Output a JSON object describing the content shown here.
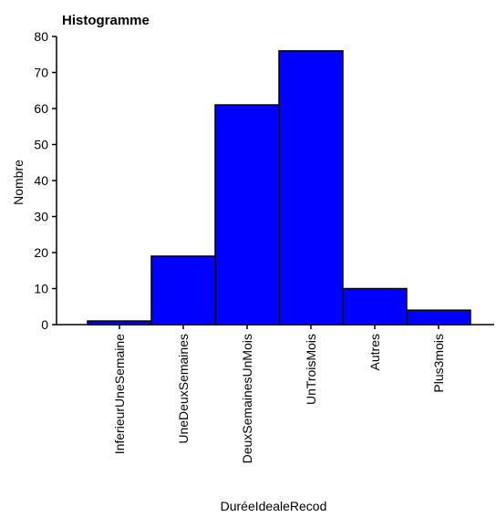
{
  "chart_data": {
    "type": "bar",
    "title": "Histogramme",
    "xlabel": "DuréeIdealeRecod",
    "ylabel": "Nombre",
    "categories": [
      "InferieurUneSemaine",
      "UneDeuxSemaines",
      "DeuxSemainesUnMois",
      "UnTroisMois",
      "Autres",
      "Plus3mois"
    ],
    "values": [
      1,
      19,
      61,
      76,
      10,
      4
    ],
    "ylim": [
      0,
      80
    ],
    "yticks": [
      "0",
      "10",
      "20",
      "30",
      "40",
      "50",
      "60",
      "70",
      "80"
    ],
    "grid": false,
    "bar_color": "#0000ff",
    "bar_edge_color": "#000000"
  }
}
